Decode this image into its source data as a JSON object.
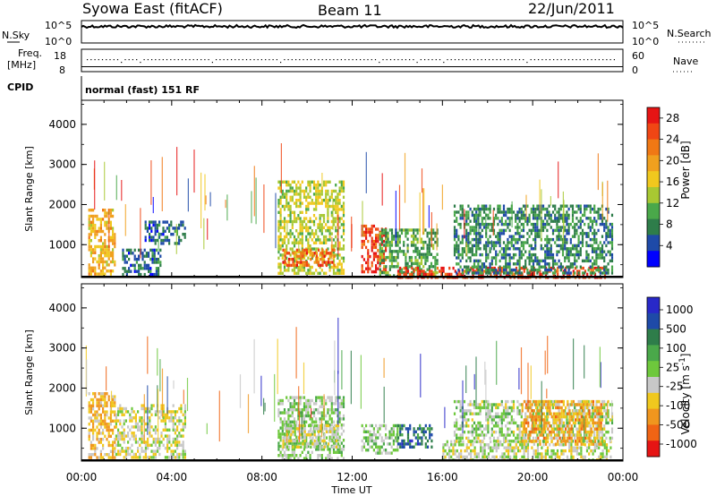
{
  "header": {
    "station": "Syowa East (fitACF)",
    "beam": "Beam 11",
    "date": "22/Jun/2011"
  },
  "top_panels": {
    "nsky_label": "N.Sky",
    "nsky_ticks": [
      "10^5",
      "10^0"
    ],
    "nsearch_label": "N.Search",
    "nsearch_ticks": [
      "10^5",
      "10^0"
    ],
    "freq_label": "Freq.",
    "freq_unit": "[MHz]",
    "freq_ticks": [
      "18",
      "8"
    ],
    "nave_label": "Nave",
    "nave_ticks": [
      "60",
      "0"
    ],
    "cpid_label": "CPID",
    "cpid_text": "normal (fast) 151 RF"
  },
  "colors": {
    "power": [
      "#0000ff",
      "#1e4aa8",
      "#2e7d4a",
      "#4aa84a",
      "#a8c832",
      "#f0c81e",
      "#f0a01e",
      "#f07814",
      "#f04614",
      "#e61414"
    ],
    "velocity": [
      "#2828c8",
      "#1e4aa8",
      "#2e7d4a",
      "#4aa84a",
      "#6ec83c",
      "#c8c8c8",
      "#f0c81e",
      "#f0961e",
      "#f06414",
      "#e61414"
    ]
  },
  "chart_data": [
    {
      "type": "heatmap",
      "name": "power",
      "xlabel": "",
      "ylabel": "Slant Range [km]",
      "x_tick_labels": [
        "00:00",
        "04:00",
        "08:00",
        "12:00",
        "16:00",
        "20:00",
        "00:00"
      ],
      "xlim_hours": [
        0,
        24
      ],
      "ylim": [
        180,
        4600
      ],
      "y_ticks": [
        1000,
        2000,
        3000,
        4000
      ],
      "colorbar": {
        "label": "Power [dB]",
        "ticks": [
          "4",
          "8",
          "12",
          "16",
          "20",
          "24",
          "28"
        ],
        "range": [
          0,
          30
        ]
      },
      "data_description_regions": [
        {
          "t": [
            0.3,
            1.5
          ],
          "r": [
            250,
            1900
          ],
          "value": 18
        },
        {
          "t": [
            1.8,
            3.5
          ],
          "r": [
            250,
            900
          ],
          "value": 6
        },
        {
          "t": [
            2.8,
            4.6
          ],
          "r": [
            1000,
            1600
          ],
          "value": 6
        },
        {
          "t": [
            8.7,
            11.6
          ],
          "r": [
            250,
            2600
          ],
          "value": 14
        },
        {
          "t": [
            8.9,
            11.2
          ],
          "r": [
            450,
            900
          ],
          "value": 24
        },
        {
          "t": [
            12.4,
            13.5
          ],
          "r": [
            300,
            1500
          ],
          "value": 26
        },
        {
          "t": [
            13.2,
            15.8
          ],
          "r": [
            250,
            1400
          ],
          "value": 10
        },
        {
          "t": [
            14.0,
            23.2
          ],
          "r": [
            220,
            450
          ],
          "value": 26
        },
        {
          "t": [
            16.5,
            23.5
          ],
          "r": [
            300,
            2000
          ],
          "value": 8
        }
      ]
    },
    {
      "type": "heatmap",
      "name": "velocity",
      "xlabel": "Time UT",
      "ylabel": "Slant Range [km]",
      "x_tick_labels": [
        "00:00",
        "04:00",
        "08:00",
        "12:00",
        "16:00",
        "20:00",
        "00:00"
      ],
      "xlim_hours": [
        0,
        24
      ],
      "ylim": [
        180,
        4600
      ],
      "y_ticks": [
        1000,
        2000,
        3000,
        4000
      ],
      "colorbar": {
        "label": "Velocity [m s^-1]",
        "ticks": [
          "1000",
          "500",
          "100",
          "25",
          "-25",
          "-100",
          "-500",
          "-1000"
        ],
        "range": [
          -1200,
          1200
        ]
      },
      "data_description_regions": [
        {
          "t": [
            0.3,
            1.5
          ],
          "r": [
            250,
            1900
          ],
          "value": -400
        },
        {
          "t": [
            1.5,
            4.6
          ],
          "r": [
            250,
            1600
          ],
          "value": -150
        },
        {
          "t": [
            8.7,
            11.6
          ],
          "r": [
            250,
            1800
          ],
          "value": 60
        },
        {
          "t": [
            8.9,
            11.4
          ],
          "r": [
            500,
            1100
          ],
          "value": -150
        },
        {
          "t": [
            12.4,
            14.0
          ],
          "r": [
            400,
            1100
          ],
          "value": 80
        },
        {
          "t": [
            14.0,
            15.5
          ],
          "r": [
            500,
            1100
          ],
          "value": 700
        },
        {
          "t": [
            16.0,
            23.5
          ],
          "r": [
            220,
            700
          ],
          "value": -80
        },
        {
          "t": [
            16.5,
            23.5
          ],
          "r": [
            700,
            1700
          ],
          "value": 0
        },
        {
          "t": [
            19.5,
            23.0
          ],
          "r": [
            600,
            1700
          ],
          "value": -500
        }
      ]
    }
  ]
}
